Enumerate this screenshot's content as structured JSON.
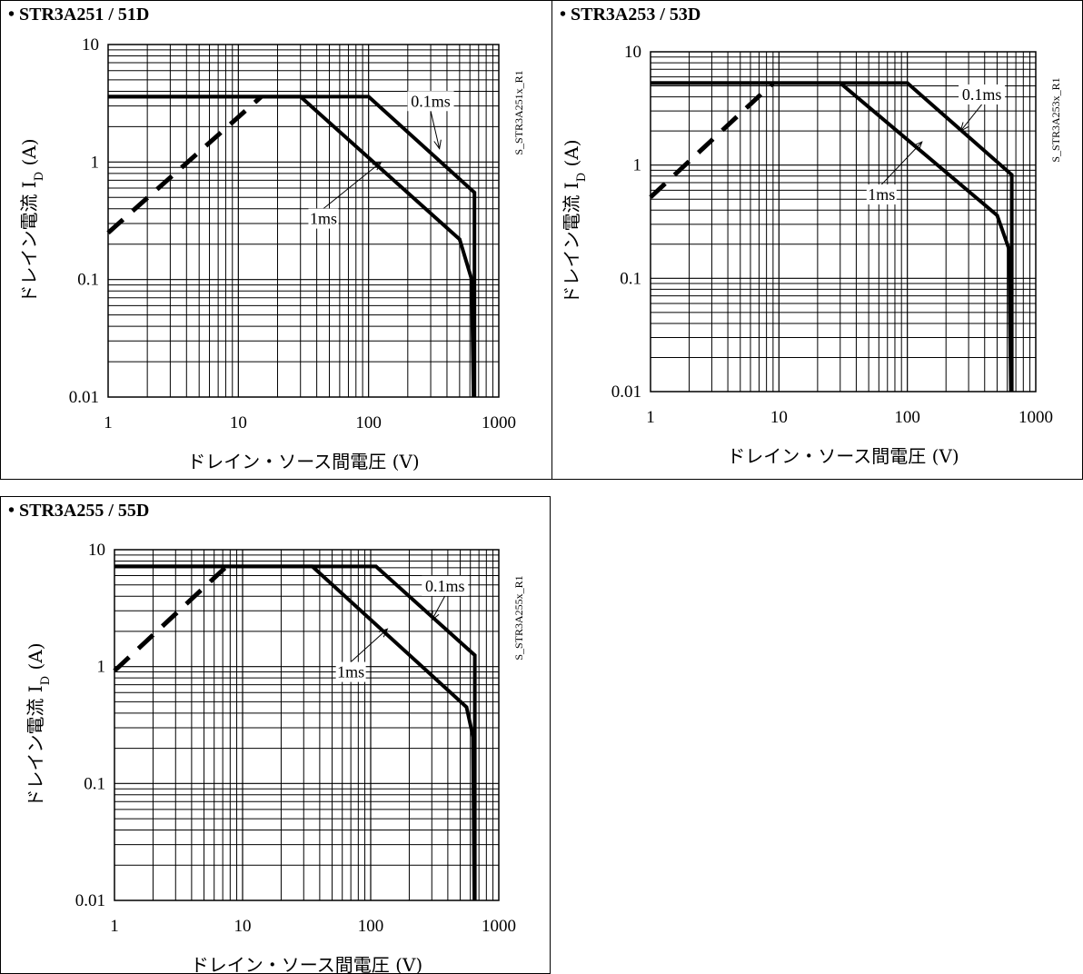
{
  "panels": [
    {
      "title": "• STR3A251 / 51D",
      "code": "S_STR3A251x_R1",
      "chart_data": {
        "type": "line",
        "xscale": "log",
        "yscale": "log",
        "xlim": [
          1,
          1000
        ],
        "ylim": [
          0.01,
          10
        ],
        "xticks": [
          "1",
          "10",
          "100",
          "1000"
        ],
        "yticks": [
          "0.01",
          "0.1",
          "1",
          "10"
        ],
        "xlabel": "ドレイン・ソース間電圧 (V)",
        "ylabel": "ドレイン電流 I",
        "ylabel_sub": "D",
        "ylabel_unit": " (A)",
        "grid": true,
        "series": [
          {
            "name": "0.1ms",
            "style": "solid",
            "points": [
              [
                1,
                3.6
              ],
              [
                100,
                3.6
              ],
              [
                650,
                0.55
              ],
              [
                650,
                0.01
              ]
            ]
          },
          {
            "name": "1ms",
            "style": "solid",
            "points": [
              [
                1,
                3.6
              ],
              [
                30,
                3.6
              ],
              [
                500,
                0.22
              ],
              [
                620,
                0.1
              ],
              [
                640,
                0.01
              ]
            ]
          },
          {
            "name": "",
            "style": "dashed",
            "points": [
              [
                1,
                0.25
              ],
              [
                15,
                3.6
              ]
            ]
          }
        ],
        "annotations": [
          {
            "text": "0.1ms",
            "at": [
              350,
              1.3
            ],
            "label_at": [
              300,
              3.3
            ]
          },
          {
            "text": "1ms",
            "at": [
              125,
              1.0
            ],
            "label_at": [
              45,
              0.33
            ]
          }
        ]
      }
    },
    {
      "title": "• STR3A253 / 53D",
      "code": "S_STR3A253x_R1",
      "chart_data": {
        "type": "line",
        "xscale": "log",
        "yscale": "log",
        "xlim": [
          1,
          1000
        ],
        "ylim": [
          0.01,
          10
        ],
        "xticks": [
          "1",
          "10",
          "100",
          "1000"
        ],
        "yticks": [
          "0.01",
          "0.1",
          "1",
          "10"
        ],
        "xlabel": "ドレイン・ソース間電圧 (V)",
        "ylabel": "ドレイン電流 I",
        "ylabel_sub": "D",
        "ylabel_unit": " (A)",
        "grid": true,
        "series": [
          {
            "name": "0.1ms",
            "style": "solid",
            "points": [
              [
                1,
                5.3
              ],
              [
                100,
                5.3
              ],
              [
                650,
                0.82
              ],
              [
                650,
                0.01
              ]
            ]
          },
          {
            "name": "1ms",
            "style": "solid",
            "points": [
              [
                1,
                5.3
              ],
              [
                30,
                5.3
              ],
              [
                500,
                0.36
              ],
              [
                620,
                0.18
              ],
              [
                640,
                0.01
              ]
            ]
          },
          {
            "name": "",
            "style": "dashed",
            "points": [
              [
                1,
                0.52
              ],
              [
                9,
                5.3
              ]
            ]
          }
        ],
        "annotations": [
          {
            "text": "0.1ms",
            "at": [
              260,
              2.0
            ],
            "label_at": [
              380,
              4.2
            ]
          },
          {
            "text": "1ms",
            "at": [
              130,
              1.6
            ],
            "label_at": [
              63,
              0.55
            ]
          }
        ]
      }
    },
    {
      "title": "• STR3A255 / 55D",
      "code": "S_STR3A255x_R1",
      "chart_data": {
        "type": "line",
        "xscale": "log",
        "yscale": "log",
        "xlim": [
          1,
          1000
        ],
        "ylim": [
          0.01,
          10
        ],
        "xticks": [
          "1",
          "10",
          "100",
          "1000"
        ],
        "yticks": [
          "0.01",
          "0.1",
          "1",
          "10"
        ],
        "xlabel": "ドレイン・ソース間電圧 (V)",
        "ylabel": "ドレイン電流 I",
        "ylabel_sub": "D",
        "ylabel_unit": " (A)",
        "grid": true,
        "series": [
          {
            "name": "0.1ms",
            "style": "solid",
            "points": [
              [
                1,
                7.2
              ],
              [
                110,
                7.2
              ],
              [
                650,
                1.25
              ],
              [
                650,
                0.01
              ]
            ]
          },
          {
            "name": "1ms",
            "style": "solid",
            "points": [
              [
                1,
                7.2
              ],
              [
                35,
                7.2
              ],
              [
                560,
                0.45
              ],
              [
                630,
                0.25
              ],
              [
                645,
                0.01
              ]
            ]
          },
          {
            "name": "",
            "style": "dashed",
            "points": [
              [
                1,
                0.92
              ],
              [
                7.5,
                7.2
              ]
            ]
          }
        ],
        "annotations": [
          {
            "text": "0.1ms",
            "at": [
              300,
              2.5
            ],
            "label_at": [
              380,
              4.9
            ]
          },
          {
            "text": "1ms",
            "at": [
              135,
              2.1
            ],
            "label_at": [
              70,
              0.9
            ]
          }
        ]
      }
    }
  ]
}
